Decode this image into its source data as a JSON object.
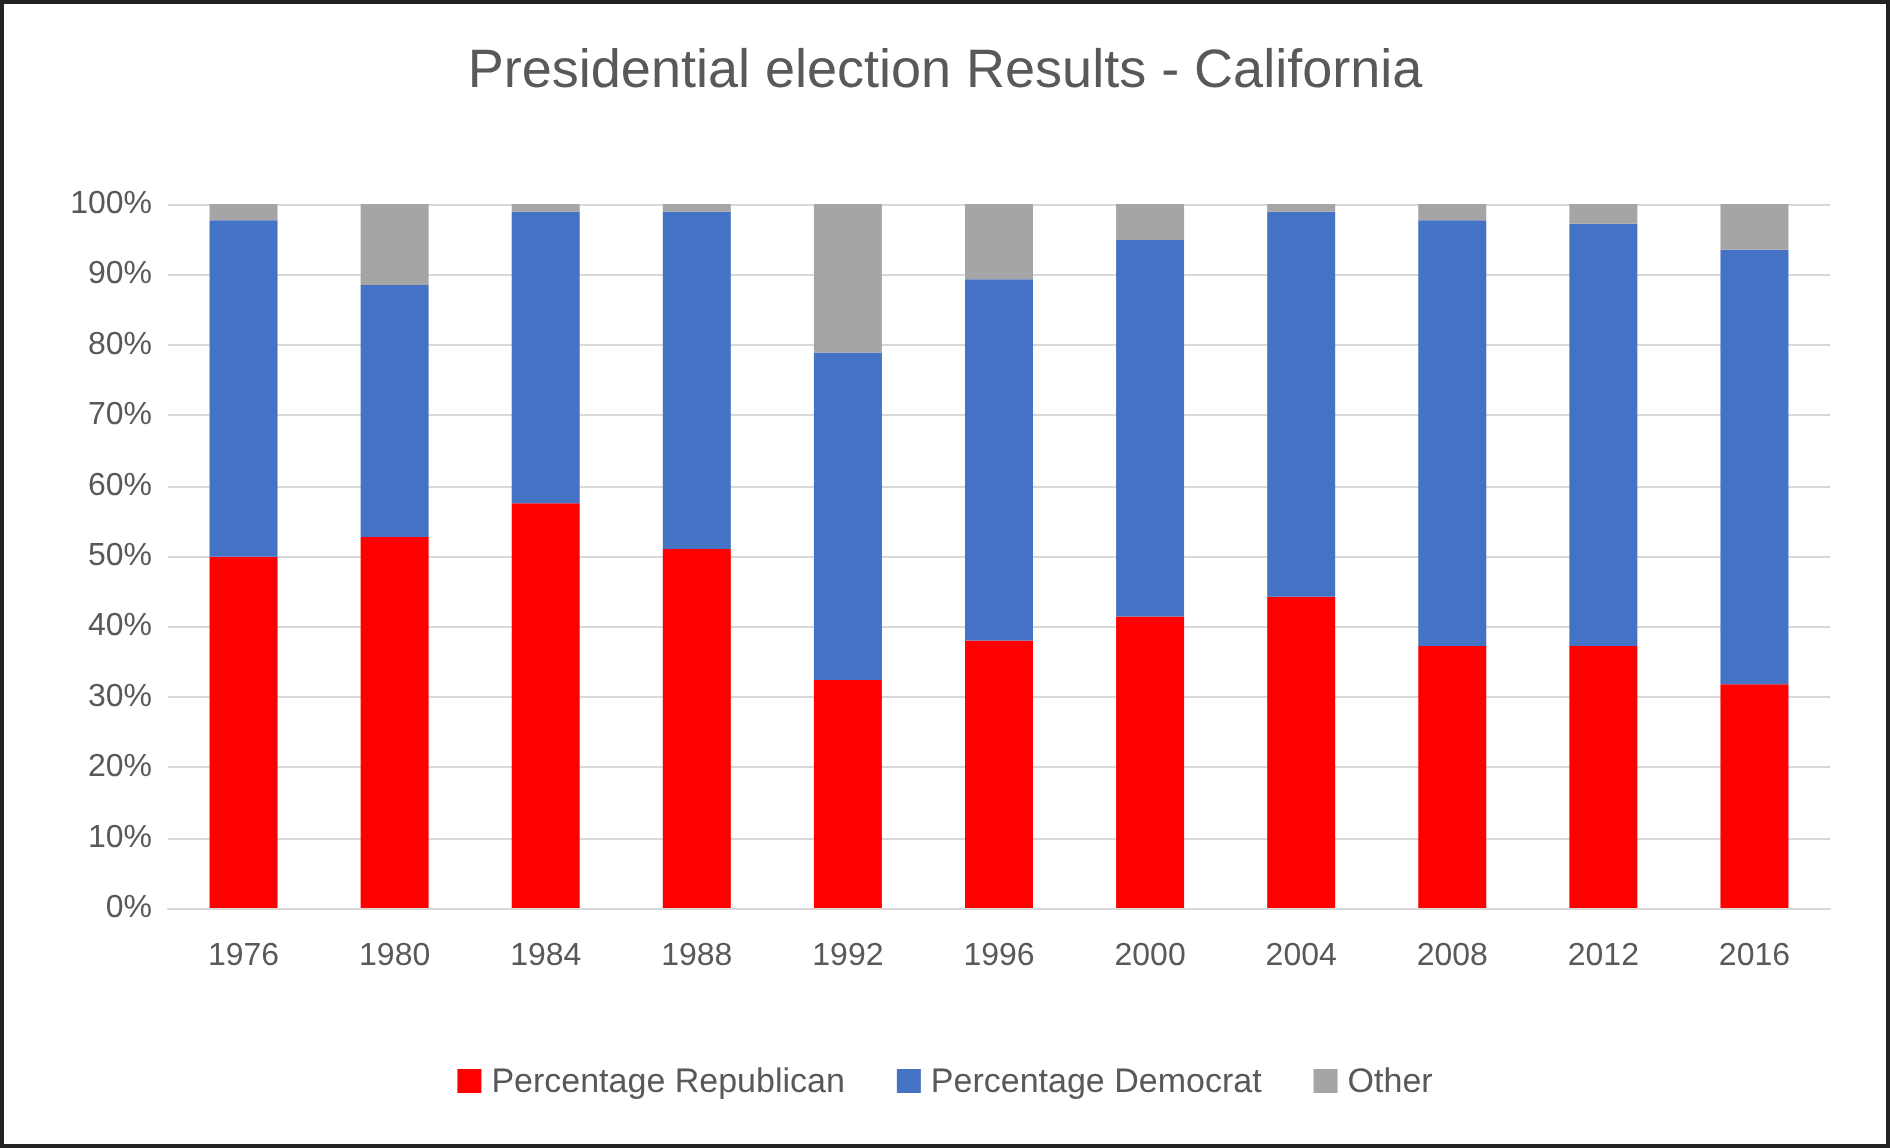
{
  "chart_data": {
    "type": "bar",
    "title": "Presidential election Results - California",
    "stacked": true,
    "categories": [
      "1976",
      "1980",
      "1984",
      "1988",
      "1992",
      "1996",
      "2000",
      "2004",
      "2008",
      "2012",
      "2016"
    ],
    "series": [
      {
        "name": "Percentage Republican",
        "color": "#ff0000",
        "values": [
          49.9,
          52.7,
          57.5,
          51.0,
          32.4,
          38.0,
          41.4,
          44.2,
          37.2,
          37.2,
          31.8
        ]
      },
      {
        "name": "Percentage Democrat",
        "color": "#4472c4",
        "values": [
          47.8,
          35.8,
          41.4,
          47.9,
          46.5,
          51.3,
          53.5,
          54.7,
          60.5,
          60.0,
          61.7
        ]
      },
      {
        "name": "Other",
        "color": "#a5a5a5",
        "values": [
          2.3,
          11.5,
          1.1,
          1.1,
          21.1,
          10.7,
          5.1,
          1.1,
          2.3,
          2.8,
          6.5
        ]
      }
    ],
    "ylim": [
      0,
      100
    ],
    "yticks": [
      {
        "value": 0,
        "label": "0%"
      },
      {
        "value": 10,
        "label": "10%"
      },
      {
        "value": 20,
        "label": "20%"
      },
      {
        "value": 30,
        "label": "30%"
      },
      {
        "value": 40,
        "label": "40%"
      },
      {
        "value": 50,
        "label": "50%"
      },
      {
        "value": 60,
        "label": "60%"
      },
      {
        "value": 70,
        "label": "70%"
      },
      {
        "value": 80,
        "label": "80%"
      },
      {
        "value": 90,
        "label": "90%"
      },
      {
        "value": 100,
        "label": "100%"
      }
    ],
    "grid": "y",
    "legend": "bottom"
  }
}
